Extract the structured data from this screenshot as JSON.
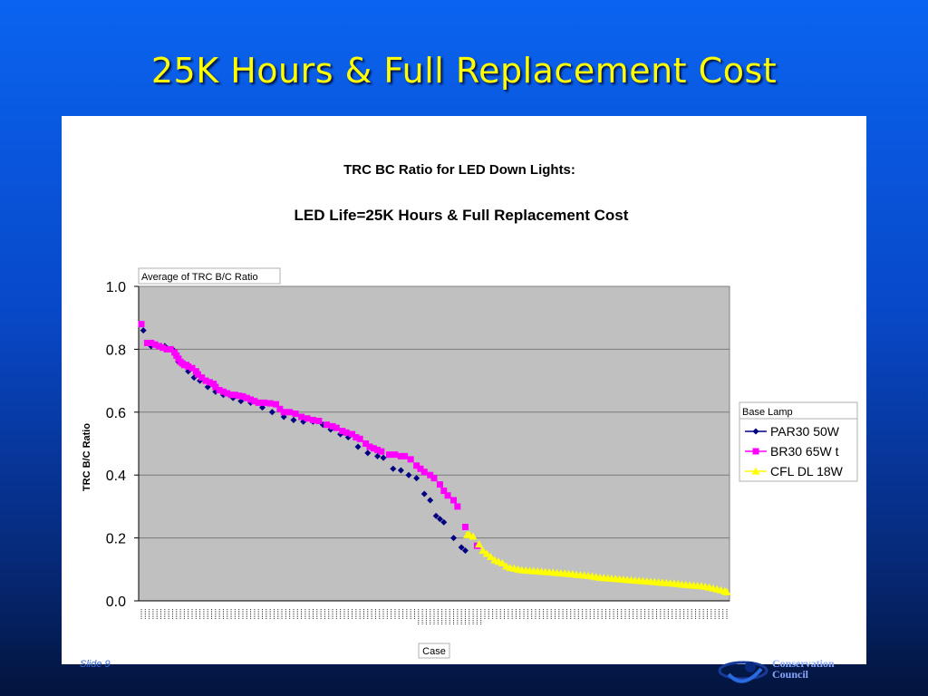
{
  "slide": {
    "title": "25K Hours & Full Replacement Cost",
    "footer_left": "Slide 9",
    "footer_org_line1": "Conservation",
    "footer_org_line2": "Council"
  },
  "chart_data": {
    "type": "scatter",
    "title_line1": "TRC BC Ratio for LED Down Lights:",
    "title_line2": "LED Life=25K Hours & Full Replacement Cost",
    "pivot_field_label": "Average of TRC B/C Ratio",
    "ylabel": "TRC B/C Ratio",
    "xlabel": "Case",
    "ylim": [
      0,
      1.0
    ],
    "yticks": [
      "1.0",
      "0.8",
      "0.6",
      "0.4",
      "0.2",
      "0.0"
    ],
    "grid": true,
    "plot_bg": "#c0c0c0",
    "legend_title": "Base Lamp",
    "legend_position": "right",
    "series": [
      {
        "name": "PAR30 50W",
        "color": "#000080",
        "marker": "diamond",
        "points": [
          [
            1,
            0.86
          ],
          [
            5,
            0.81
          ],
          [
            8,
            0.81
          ],
          [
            12,
            0.81
          ],
          [
            16,
            0.8
          ],
          [
            19,
            0.76
          ],
          [
            24,
            0.73
          ],
          [
            27,
            0.71
          ],
          [
            30,
            0.7
          ],
          [
            34,
            0.68
          ],
          [
            38,
            0.665
          ],
          [
            42,
            0.655
          ],
          [
            47,
            0.645
          ],
          [
            51,
            0.635
          ],
          [
            56,
            0.63
          ],
          [
            62,
            0.615
          ],
          [
            67,
            0.6
          ],
          [
            73,
            0.585
          ],
          [
            78,
            0.575
          ],
          [
            83,
            0.57
          ],
          [
            88,
            0.57
          ],
          [
            93,
            0.56
          ],
          [
            97,
            0.545
          ],
          [
            102,
            0.53
          ],
          [
            106,
            0.52
          ],
          [
            111,
            0.49
          ],
          [
            116,
            0.47
          ],
          [
            121,
            0.46
          ],
          [
            124,
            0.455
          ],
          [
            129,
            0.42
          ],
          [
            133,
            0.415
          ],
          [
            137,
            0.4
          ],
          [
            141,
            0.39
          ],
          [
            145,
            0.34
          ],
          [
            148,
            0.32
          ],
          [
            151,
            0.27
          ],
          [
            153,
            0.26
          ],
          [
            155,
            0.25
          ],
          [
            160,
            0.2
          ],
          [
            164,
            0.17
          ],
          [
            166,
            0.16
          ]
        ]
      },
      {
        "name": "BR30 65W t",
        "color": "#ff00ff",
        "marker": "square",
        "points": [
          [
            0,
            0.88
          ],
          [
            3,
            0.82
          ],
          [
            5,
            0.82
          ],
          [
            7,
            0.815
          ],
          [
            9,
            0.81
          ],
          [
            11,
            0.805
          ],
          [
            13,
            0.8
          ],
          [
            15,
            0.8
          ],
          [
            17,
            0.79
          ],
          [
            18,
            0.78
          ],
          [
            19,
            0.77
          ],
          [
            20,
            0.76
          ],
          [
            21,
            0.755
          ],
          [
            22,
            0.75
          ],
          [
            23,
            0.75
          ],
          [
            24,
            0.745
          ],
          [
            26,
            0.74
          ],
          [
            28,
            0.73
          ],
          [
            29,
            0.72
          ],
          [
            31,
            0.71
          ],
          [
            33,
            0.7
          ],
          [
            35,
            0.695
          ],
          [
            37,
            0.69
          ],
          [
            38,
            0.68
          ],
          [
            40,
            0.67
          ],
          [
            42,
            0.665
          ],
          [
            44,
            0.66
          ],
          [
            46,
            0.655
          ],
          [
            48,
            0.655
          ],
          [
            50,
            0.652
          ],
          [
            52,
            0.65
          ],
          [
            54,
            0.645
          ],
          [
            56,
            0.64
          ],
          [
            58,
            0.635
          ],
          [
            60,
            0.63
          ],
          [
            63,
            0.63
          ],
          [
            66,
            0.628
          ],
          [
            69,
            0.625
          ],
          [
            71,
            0.61
          ],
          [
            73,
            0.6
          ],
          [
            76,
            0.6
          ],
          [
            79,
            0.595
          ],
          [
            82,
            0.585
          ],
          [
            85,
            0.58
          ],
          [
            88,
            0.575
          ],
          [
            91,
            0.572
          ],
          [
            95,
            0.56
          ],
          [
            98,
            0.555
          ],
          [
            100,
            0.55
          ],
          [
            103,
            0.54
          ],
          [
            105,
            0.535
          ],
          [
            108,
            0.53
          ],
          [
            110,
            0.52
          ],
          [
            112,
            0.515
          ],
          [
            115,
            0.5
          ],
          [
            117,
            0.49
          ],
          [
            119,
            0.485
          ],
          [
            121,
            0.48
          ],
          [
            123,
            0.475
          ],
          [
            127,
            0.465
          ],
          [
            130,
            0.465
          ],
          [
            133,
            0.46
          ],
          [
            135,
            0.46
          ],
          [
            138,
            0.45
          ],
          [
            141,
            0.43
          ],
          [
            143,
            0.42
          ],
          [
            145,
            0.41
          ],
          [
            148,
            0.4
          ],
          [
            150,
            0.39
          ],
          [
            153,
            0.37
          ],
          [
            155,
            0.35
          ],
          [
            157,
            0.335
          ],
          [
            160,
            0.32
          ],
          [
            162,
            0.3
          ],
          [
            166,
            0.235
          ],
          [
            172,
            0.175
          ]
        ]
      },
      {
        "name": "CFL DL 18W",
        "color": "#ffff00",
        "marker": "triangle",
        "points": [
          [
            167,
            0.21
          ],
          [
            168,
            0.21
          ],
          [
            170,
            0.205
          ],
          [
            173,
            0.18
          ],
          [
            175,
            0.16
          ],
          [
            177,
            0.15
          ],
          [
            179,
            0.14
          ],
          [
            181,
            0.13
          ],
          [
            183,
            0.125
          ],
          [
            185,
            0.12
          ],
          [
            187,
            0.11
          ],
          [
            189,
            0.105
          ],
          [
            191,
            0.103
          ],
          [
            193,
            0.1
          ],
          [
            195,
            0.098
          ],
          [
            197,
            0.097
          ],
          [
            199,
            0.096
          ],
          [
            201,
            0.095
          ],
          [
            203,
            0.094
          ],
          [
            205,
            0.093
          ],
          [
            207,
            0.092
          ],
          [
            209,
            0.091
          ],
          [
            211,
            0.09
          ],
          [
            213,
            0.089
          ],
          [
            215,
            0.088
          ],
          [
            217,
            0.087
          ],
          [
            219,
            0.086
          ],
          [
            221,
            0.085
          ],
          [
            223,
            0.083
          ],
          [
            225,
            0.082
          ],
          [
            227,
            0.081
          ],
          [
            229,
            0.08
          ],
          [
            231,
            0.078
          ],
          [
            233,
            0.076
          ],
          [
            235,
            0.074
          ],
          [
            237,
            0.073
          ],
          [
            239,
            0.072
          ],
          [
            241,
            0.071
          ],
          [
            243,
            0.07
          ],
          [
            245,
            0.069
          ],
          [
            247,
            0.068
          ],
          [
            249,
            0.067
          ],
          [
            251,
            0.066
          ],
          [
            253,
            0.065
          ],
          [
            255,
            0.064
          ],
          [
            257,
            0.063
          ],
          [
            259,
            0.062
          ],
          [
            261,
            0.061
          ],
          [
            263,
            0.06
          ],
          [
            265,
            0.059
          ],
          [
            267,
            0.058
          ],
          [
            269,
            0.057
          ],
          [
            271,
            0.056
          ],
          [
            273,
            0.055
          ],
          [
            275,
            0.054
          ],
          [
            277,
            0.052
          ],
          [
            279,
            0.051
          ],
          [
            281,
            0.05
          ],
          [
            283,
            0.049
          ],
          [
            285,
            0.048
          ],
          [
            287,
            0.047
          ],
          [
            289,
            0.045
          ],
          [
            291,
            0.043
          ],
          [
            293,
            0.04
          ],
          [
            295,
            0.037
          ],
          [
            297,
            0.034
          ],
          [
            299,
            0.031
          ],
          [
            300,
            0.028
          ]
        ]
      }
    ],
    "x_count": 300
  }
}
